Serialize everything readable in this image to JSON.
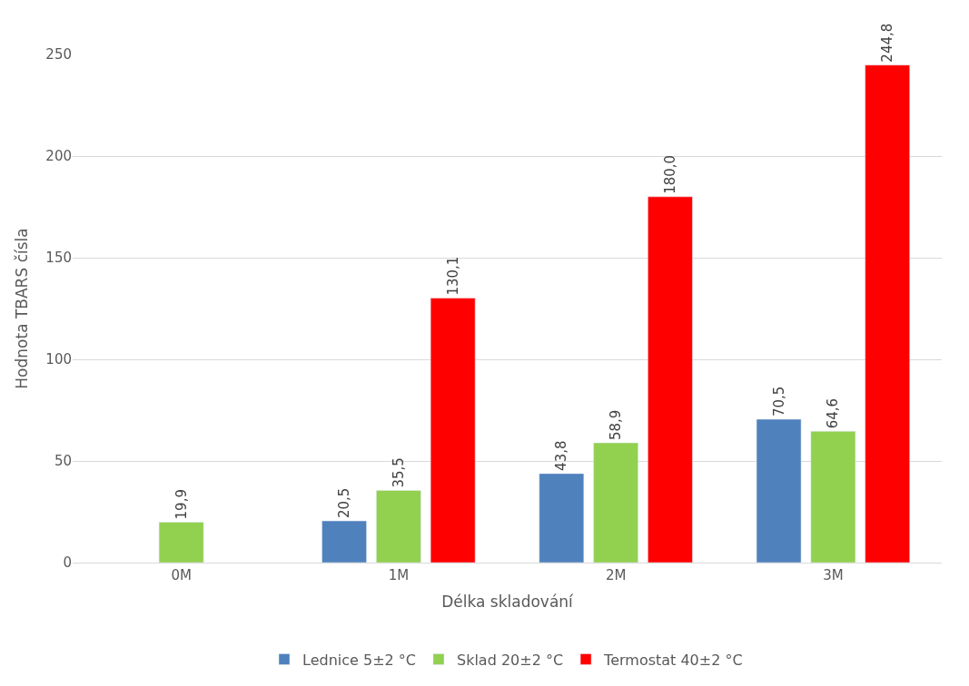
{
  "chart_data": {
    "type": "bar",
    "xlabel": "Délka skladování",
    "ylabel": "Hodnota TBARS čísla",
    "categories": [
      "0M",
      "1M",
      "2M",
      "3M"
    ],
    "series": [
      {
        "name": "Lednice 5±2 °C",
        "color": "#4f81bd",
        "values": [
          null,
          20.5,
          43.8,
          70.5
        ],
        "value_labels": [
          null,
          "20,5",
          "43,8",
          "70,5"
        ]
      },
      {
        "name": "Sklad 20±2 °C",
        "color": "#92d050",
        "values": [
          19.9,
          35.5,
          58.9,
          64.6
        ],
        "value_labels": [
          "19,9",
          "35,5",
          "58,9",
          "64,6"
        ]
      },
      {
        "name": "Termostat 40±2 °C",
        "color": "#ff0000",
        "values": [
          null,
          130.1,
          180.0,
          244.8
        ],
        "value_labels": [
          null,
          "130,1",
          "180,0",
          "244,8"
        ]
      }
    ],
    "ylim": [
      0,
      250
    ],
    "yticks": [
      0,
      50,
      100,
      150,
      200,
      250
    ],
    "grid": "y",
    "legend": "bottom"
  }
}
